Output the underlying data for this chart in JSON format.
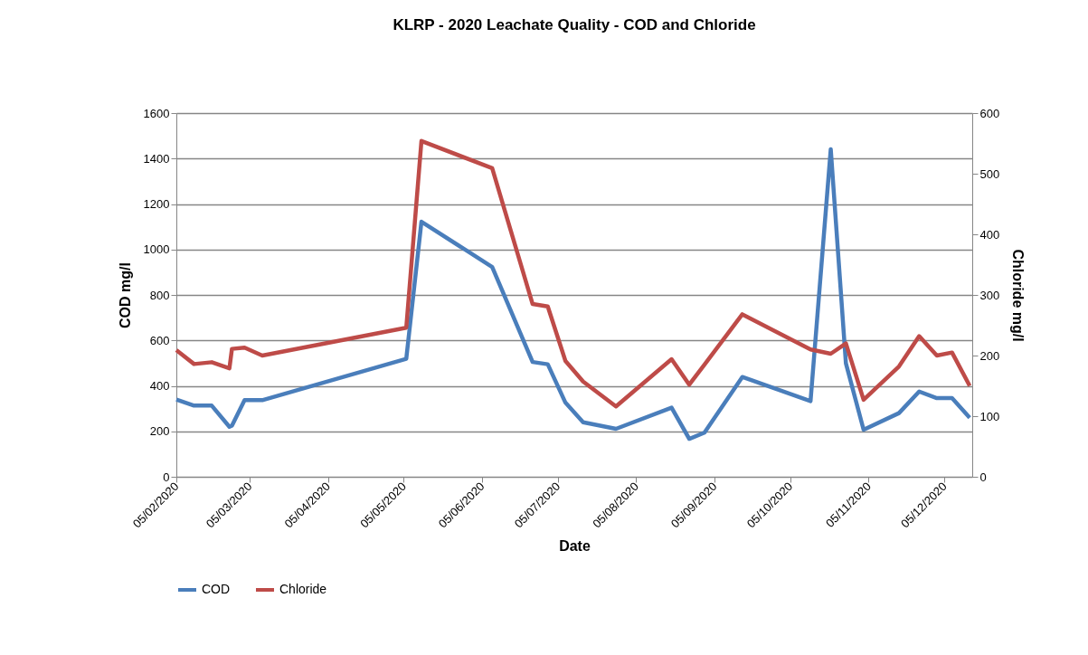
{
  "chart_data": {
    "type": "line",
    "title": "KLRP - 2020 Leachate Quality - COD and Chloride",
    "xlabel": "Date",
    "ylabel": "COD mg/l",
    "y2label": "Chloride mg/l",
    "x": [
      "2020-02-05",
      "2020-02-12",
      "2020-02-19",
      "2020-02-26",
      "2020-02-27",
      "2020-03-03",
      "2020-03-10",
      "2020-05-06",
      "2020-05-12",
      "2020-06-09",
      "2020-06-25",
      "2020-07-01",
      "2020-07-08",
      "2020-07-15",
      "2020-07-28",
      "2020-08-19",
      "2020-08-26",
      "2020-09-01",
      "2020-09-16",
      "2020-10-13",
      "2020-10-21",
      "2020-10-27",
      "2020-11-03",
      "2020-11-17",
      "2020-11-25",
      "2020-12-02",
      "2020-12-08",
      "2020-12-15"
    ],
    "series": [
      {
        "name": "COD",
        "color": "#4a7ebb",
        "values": [
          340,
          313,
          313,
          220,
          225,
          337,
          337,
          519,
          1122,
          923,
          505,
          495,
          326,
          240,
          211,
          304,
          167,
          194,
          439,
          333,
          1441,
          499,
          207,
          280,
          375,
          346,
          346,
          260
        ]
      },
      {
        "name": "Chloride",
        "color": "#be4b48",
        "axis": "y2",
        "values": [
          209,
          186,
          189,
          179,
          211,
          213,
          200,
          246,
          554,
          509,
          285,
          281,
          191,
          157,
          116,
          194,
          152,
          185,
          268,
          210,
          203,
          220,
          127,
          182,
          232,
          200,
          205,
          150
        ]
      }
    ],
    "xlim": [
      "2020-02-05",
      "2020-12-16"
    ],
    "xticks": [
      {
        "value": "2020-02-05",
        "label": "05/02/2020"
      },
      {
        "value": "2020-03-05",
        "label": "05/03/2020"
      },
      {
        "value": "2020-04-05",
        "label": "05/04/2020"
      },
      {
        "value": "2020-05-05",
        "label": "05/05/2020"
      },
      {
        "value": "2020-06-05",
        "label": "05/06/2020"
      },
      {
        "value": "2020-07-05",
        "label": "05/07/2020"
      },
      {
        "value": "2020-08-05",
        "label": "05/08/2020"
      },
      {
        "value": "2020-09-05",
        "label": "05/09/2020"
      },
      {
        "value": "2020-10-05",
        "label": "05/10/2020"
      },
      {
        "value": "2020-11-05",
        "label": "05/11/2020"
      },
      {
        "value": "2020-12-05",
        "label": "05/12/2020"
      }
    ],
    "ylim": [
      0,
      1600
    ],
    "yticks": [
      0,
      200,
      400,
      600,
      800,
      1000,
      1200,
      1400,
      1600
    ],
    "y2lim": [
      0,
      600
    ],
    "y2ticks": [
      0,
      100,
      200,
      300,
      400,
      500,
      600
    ],
    "grid": "y",
    "legend": "bottom",
    "marker": "none",
    "line_style": "solid"
  }
}
